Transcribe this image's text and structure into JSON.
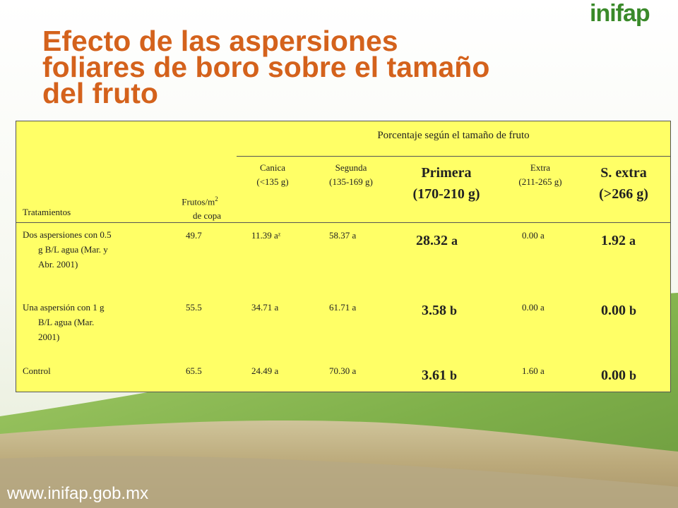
{
  "slide": {
    "logo_text": "inifap",
    "title_lines": [
      "Efecto de las aspersiones",
      "foliares de boro sobre el tamaño",
      "del fruto"
    ],
    "url": "www.inifap.gob.mx"
  },
  "table": {
    "group_header": "Porcentaje según el tamaño de fruto",
    "col_treatments": "Tratamientos",
    "col_fruits_line1": "Frutos/m",
    "col_fruits_sup": "2",
    "col_fruits_line2": "de copa",
    "col_canica": [
      "Canica",
      "(<135 g)"
    ],
    "col_segunda": [
      "Segunda",
      "(135-169 g)"
    ],
    "col_primera": [
      "Primera",
      "(170-210 g)"
    ],
    "col_extra": [
      "Extra",
      "(211-265 g)"
    ],
    "col_sextra": [
      "S. extra",
      "(>266 g)"
    ],
    "rows": [
      {
        "treatment": [
          "Dos aspersiones con 0.5",
          "g B/L agua (Mar. y",
          "Abr. 2001)"
        ],
        "frutos": "49.7",
        "canica": "11.39 aᶻ",
        "segunda": "58.37 a",
        "primera_num": "28.32",
        "primera_letter": "a",
        "extra": "0.00 a",
        "sextra_num": "1.92",
        "sextra_letter": "a"
      },
      {
        "treatment": [
          "Una aspersión con 1 g",
          "B/L agua (Mar.",
          "2001)"
        ],
        "frutos": "55.5",
        "canica": "34.71 a",
        "segunda": "61.71 a",
        "primera_num": "3.58",
        "primera_letter": "b",
        "extra": "0.00 a",
        "sextra_num": "0.00",
        "sextra_letter": "b"
      },
      {
        "treatment": [
          "Control"
        ],
        "frutos": "65.5",
        "canica": "24.49 a",
        "segunda": "70.30 a",
        "primera_num": "3.61",
        "primera_letter": "b",
        "extra": "1.60 a",
        "sextra_num": "0.00",
        "sextra_letter": "b"
      }
    ]
  }
}
